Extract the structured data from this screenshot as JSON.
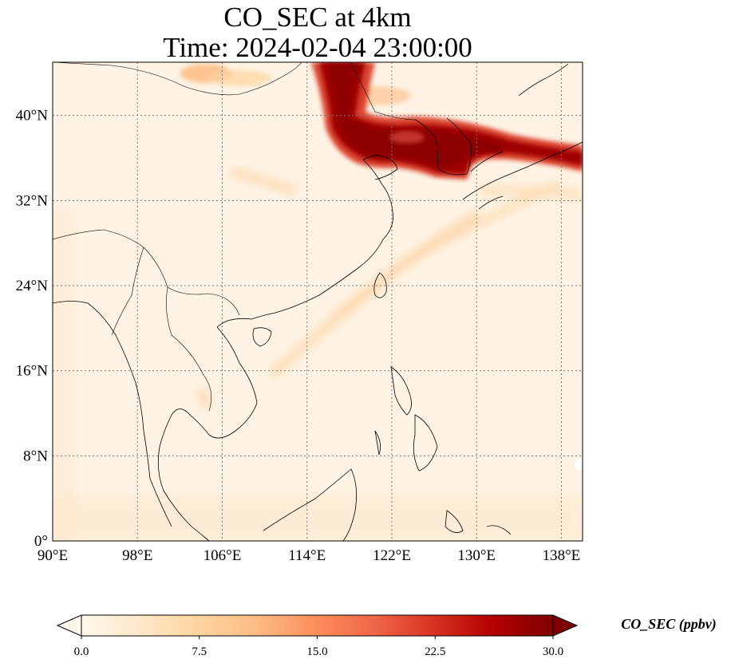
{
  "title": {
    "line1": "CO_SEC at 4km",
    "line2": "Time: 2024-02-04 23:00:00"
  },
  "map": {
    "extent": {
      "lon": [
        90,
        140
      ],
      "lat": [
        0,
        45
      ]
    },
    "lon_ticks": [
      {
        "value": 90,
        "label": "90°E"
      },
      {
        "value": 98,
        "label": "98°E"
      },
      {
        "value": 106,
        "label": "106°E"
      },
      {
        "value": 114,
        "label": "114°E"
      },
      {
        "value": 122,
        "label": "122°E"
      },
      {
        "value": 130,
        "label": "130°E"
      },
      {
        "value": 138,
        "label": "138°E"
      }
    ],
    "lat_ticks": [
      {
        "value": 0,
        "label": "0°"
      },
      {
        "value": 8,
        "label": "8°N"
      },
      {
        "value": 16,
        "label": "16°N"
      },
      {
        "value": 24,
        "label": "24°N"
      },
      {
        "value": 32,
        "label": "32°N"
      },
      {
        "value": 40,
        "label": "40°N"
      }
    ],
    "gridlines": "dotted",
    "background_color": "#fef3e4"
  },
  "colorbar": {
    "label": "CO_SEC (ppbv)",
    "min": 0,
    "max": 30,
    "extend": "both",
    "ticks": [
      {
        "value": 0,
        "label": "0.0"
      },
      {
        "value": 7.5,
        "label": "7.5"
      },
      {
        "value": 15,
        "label": "15.0"
      },
      {
        "value": 22.5,
        "label": "22.5"
      },
      {
        "value": 30,
        "label": "30.0"
      }
    ],
    "colormap": "OrRd",
    "colors": [
      "#fff7ec",
      "#fee8c8",
      "#fdd49e",
      "#fdbb84",
      "#fc8d59",
      "#ef6548",
      "#d7301f",
      "#b30000",
      "#7f0000"
    ]
  },
  "plume_regions": [
    {
      "name": "north-china-korea-japan plume",
      "level": "high"
    },
    {
      "name": "mongolia plume",
      "level": "medium"
    },
    {
      "name": "east-china-sea streak",
      "level": "low"
    },
    {
      "name": "south-china-sea streak",
      "level": "low"
    }
  ]
}
